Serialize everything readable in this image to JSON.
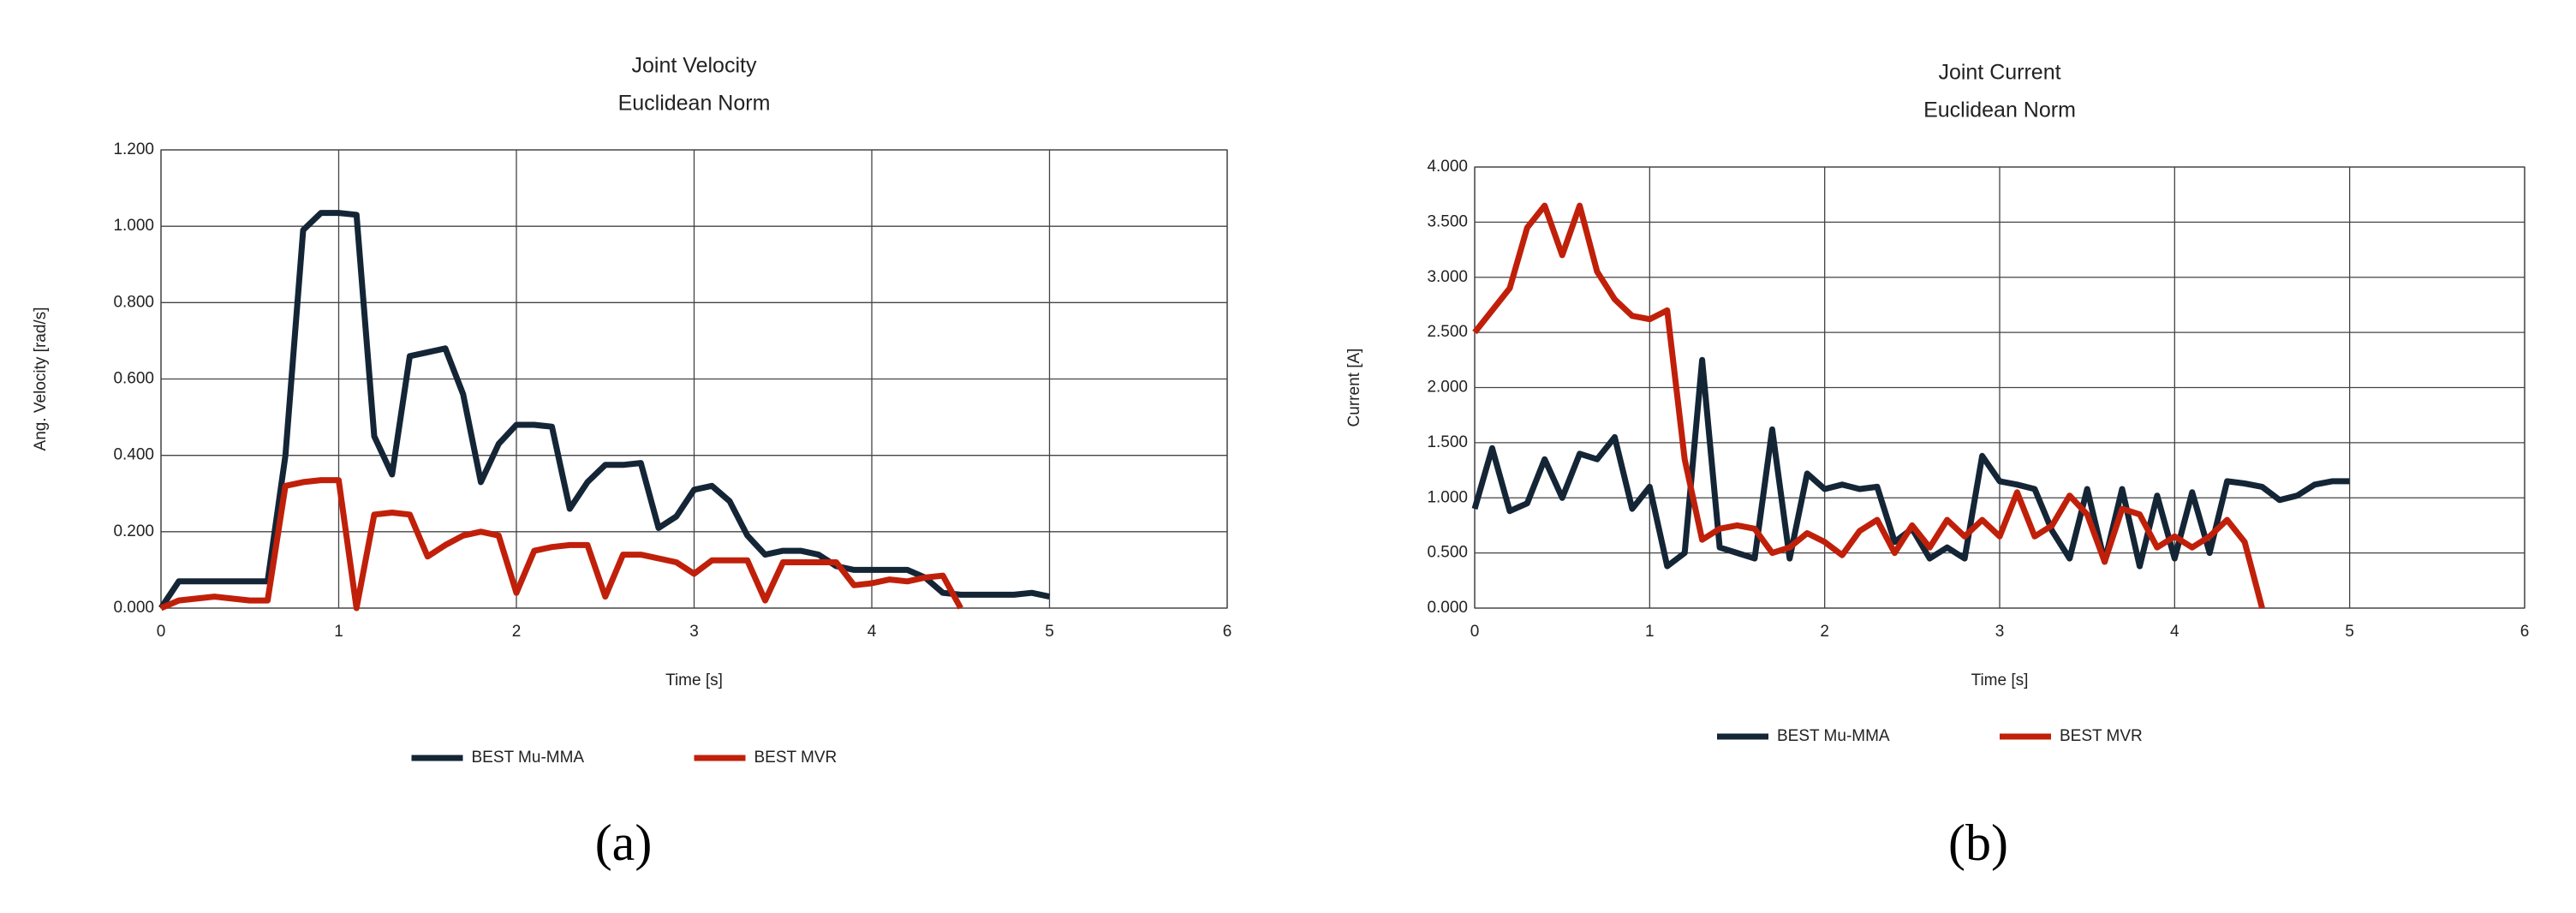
{
  "chart_data": [
    {
      "type": "line",
      "title": "Joint Velocity",
      "subtitle": "Euclidean Norm",
      "xlabel": "Time [s]",
      "ylabel": "Ang. Velocity [rad/s]",
      "panel": "(a)",
      "x": [
        0,
        0.1,
        0.2,
        0.3,
        0.4,
        0.5,
        0.6,
        0.7,
        0.8,
        0.9,
        1.0,
        1.1,
        1.2,
        1.3,
        1.4,
        1.5,
        1.6,
        1.7,
        1.8,
        1.9,
        2.0,
        2.1,
        2.2,
        2.3,
        2.4,
        2.5,
        2.6,
        2.7,
        2.8,
        2.9,
        3.0,
        3.1,
        3.2,
        3.3,
        3.4,
        3.5,
        3.6,
        3.7,
        3.8,
        3.9,
        4.0,
        4.1,
        4.2,
        4.3,
        4.4,
        4.5,
        4.6,
        4.7,
        4.8,
        4.9,
        5.0
      ],
      "series": [
        {
          "name": "BEST Mu-MMA",
          "color": "#142536",
          "values": [
            0,
            0.07,
            0.07,
            0.07,
            0.07,
            0.07,
            0.07,
            0.4,
            0.99,
            1.035,
            1.035,
            1.03,
            0.45,
            0.35,
            0.66,
            0.67,
            0.68,
            0.56,
            0.33,
            0.43,
            0.48,
            0.48,
            0.475,
            0.26,
            0.33,
            0.375,
            0.375,
            0.38,
            0.21,
            0.24,
            0.31,
            0.32,
            0.28,
            0.19,
            0.14,
            0.15,
            0.15,
            0.14,
            0.11,
            0.1,
            0.1,
            0.1,
            0.1,
            0.08,
            0.04,
            0.035,
            0.035,
            0.035,
            0.035,
            0.04,
            0.03
          ]
        },
        {
          "name": "BEST MVR",
          "color": "#c0200a",
          "values": [
            0,
            0.02,
            0.025,
            0.03,
            0.025,
            0.02,
            0.02,
            0.32,
            0.33,
            0.335,
            0.335,
            0.0,
            0.245,
            0.25,
            0.245,
            0.135,
            0.165,
            0.19,
            0.2,
            0.19,
            0.04,
            0.15,
            0.16,
            0.165,
            0.165,
            0.03,
            0.14,
            0.14,
            0.13,
            0.12,
            0.09,
            0.125,
            0.125,
            0.125,
            0.02,
            0.12,
            0.12,
            0.12,
            0.12,
            0.06,
            0.065,
            0.075,
            0.07,
            0.08,
            0.085,
            0.0,
            null,
            null,
            null,
            null,
            null
          ]
        }
      ],
      "xlim": [
        0,
        6
      ],
      "xticks": [
        0,
        1,
        2,
        3,
        4,
        5,
        6
      ],
      "ylim": [
        0,
        1.2
      ],
      "yticks": [
        {
          "value": 0,
          "label": "0.000"
        },
        {
          "value": 0.2,
          "label": "0.200"
        },
        {
          "value": 0.4,
          "label": "0.400"
        },
        {
          "value": 0.6,
          "label": "0.600"
        },
        {
          "value": 0.8,
          "label": "0.800"
        },
        {
          "value": 1.0,
          "label": "1.000"
        },
        {
          "value": 1.2,
          "label": "1.200"
        }
      ],
      "grid": true,
      "legend": "bottom"
    },
    {
      "type": "line",
      "title": "Joint Current",
      "subtitle": "Euclidean Norm",
      "xlabel": "Time [s]",
      "ylabel": "Current [A]",
      "panel": "(b)",
      "x": [
        0,
        0.1,
        0.2,
        0.3,
        0.4,
        0.5,
        0.6,
        0.7,
        0.8,
        0.9,
        1.0,
        1.1,
        1.2,
        1.3,
        1.4,
        1.5,
        1.6,
        1.7,
        1.8,
        1.9,
        2.0,
        2.1,
        2.2,
        2.3,
        2.4,
        2.5,
        2.6,
        2.7,
        2.8,
        2.9,
        3.0,
        3.1,
        3.2,
        3.3,
        3.4,
        3.5,
        3.6,
        3.7,
        3.8,
        3.9,
        4.0,
        4.1,
        4.2,
        4.3,
        4.4,
        4.5,
        4.6,
        4.7,
        4.8,
        4.9,
        5.0
      ],
      "series": [
        {
          "name": "BEST Mu-MMA",
          "color": "#142536",
          "values": [
            0.9,
            1.45,
            0.88,
            0.95,
            1.35,
            1.0,
            1.4,
            1.35,
            1.55,
            0.9,
            1.1,
            0.38,
            0.5,
            2.25,
            0.55,
            0.5,
            0.45,
            1.62,
            0.45,
            1.22,
            1.08,
            1.12,
            1.08,
            1.1,
            0.6,
            0.72,
            0.45,
            0.55,
            0.45,
            1.38,
            1.15,
            1.12,
            1.08,
            0.7,
            0.45,
            1.08,
            0.42,
            1.08,
            0.38,
            1.02,
            0.45,
            1.05,
            0.5,
            1.15,
            1.13,
            1.1,
            0.98,
            1.02,
            1.12,
            1.15,
            1.15
          ]
        },
        {
          "name": "BEST MVR",
          "color": "#c0200a",
          "values": [
            2.5,
            2.7,
            2.9,
            3.45,
            3.65,
            3.2,
            3.65,
            3.05,
            2.8,
            2.65,
            2.62,
            2.7,
            1.35,
            0.62,
            0.72,
            0.75,
            0.72,
            0.5,
            0.55,
            0.68,
            0.6,
            0.48,
            0.7,
            0.8,
            0.5,
            0.75,
            0.55,
            0.8,
            0.65,
            0.8,
            0.65,
            1.05,
            0.65,
            0.75,
            1.02,
            0.85,
            0.42,
            0.9,
            0.85,
            0.55,
            0.65,
            0.55,
            0.65,
            0.8,
            0.6,
            0.0,
            null,
            null,
            null,
            null,
            null
          ]
        }
      ],
      "xlim": [
        0,
        6
      ],
      "xticks": [
        0,
        1,
        2,
        3,
        4,
        5,
        6
      ],
      "ylim": [
        0,
        4
      ],
      "yticks": [
        {
          "value": 0,
          "label": "0.000"
        },
        {
          "value": 0.5,
          "label": "0.500"
        },
        {
          "value": 1.0,
          "label": "1.000"
        },
        {
          "value": 1.5,
          "label": "1.500"
        },
        {
          "value": 2.0,
          "label": "2.000"
        },
        {
          "value": 2.5,
          "label": "2.500"
        },
        {
          "value": 3.0,
          "label": "3.000"
        },
        {
          "value": 3.5,
          "label": "3.500"
        },
        {
          "value": 4.0,
          "label": "4.000"
        }
      ],
      "grid": true,
      "legend": "bottom"
    }
  ]
}
